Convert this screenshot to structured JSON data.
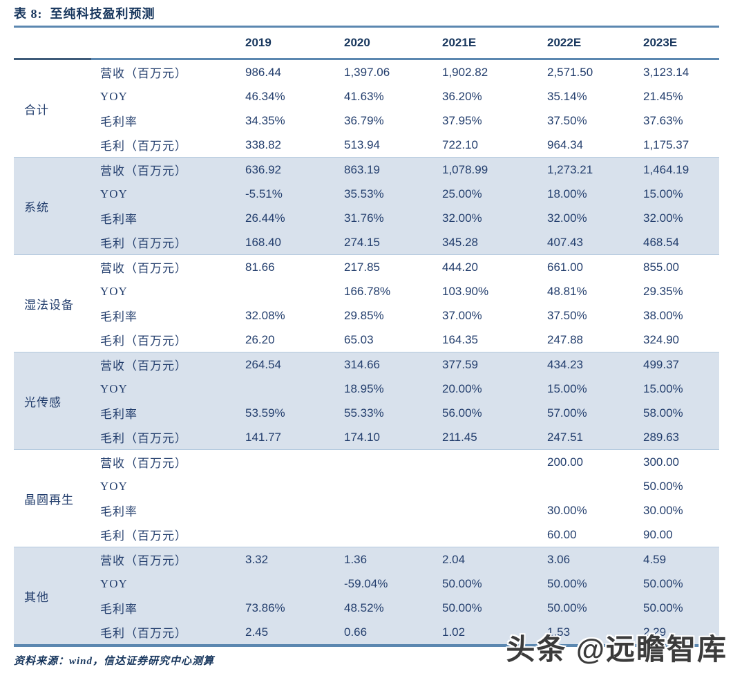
{
  "table": {
    "title": "表 8:  至纯科技盈利预测",
    "columns": [
      "2019",
      "2020",
      "2021E",
      "2022E",
      "2023E"
    ],
    "groups": [
      {
        "name": "合计",
        "rows": [
          {
            "metric": "营收（百万元）",
            "values": [
              "986.44",
              "1,397.06",
              "1,902.82",
              "2,571.50",
              "3,123.14"
            ]
          },
          {
            "metric": "YOY",
            "values": [
              "46.34%",
              "41.63%",
              "36.20%",
              "35.14%",
              "21.45%"
            ]
          },
          {
            "metric": "毛利率",
            "values": [
              "34.35%",
              "36.79%",
              "37.95%",
              "37.50%",
              "37.63%"
            ]
          },
          {
            "metric": "毛利（百万元）",
            "values": [
              "338.82",
              "513.94",
              "722.10",
              "964.34",
              "1,175.37"
            ]
          }
        ]
      },
      {
        "name": "系统",
        "rows": [
          {
            "metric": "营收（百万元）",
            "values": [
              "636.92",
              "863.19",
              "1,078.99",
              "1,273.21",
              "1,464.19"
            ]
          },
          {
            "metric": "YOY",
            "values": [
              "-5.51%",
              "35.53%",
              "25.00%",
              "18.00%",
              "15.00%"
            ]
          },
          {
            "metric": "毛利率",
            "values": [
              "26.44%",
              "31.76%",
              "32.00%",
              "32.00%",
              "32.00%"
            ]
          },
          {
            "metric": "毛利（百万元）",
            "values": [
              "168.40",
              "274.15",
              "345.28",
              "407.43",
              "468.54"
            ]
          }
        ]
      },
      {
        "name": "湿法设备",
        "rows": [
          {
            "metric": "营收（百万元）",
            "values": [
              "81.66",
              "217.85",
              "444.20",
              "661.00",
              "855.00"
            ]
          },
          {
            "metric": "YOY",
            "values": [
              "",
              "166.78%",
              "103.90%",
              "48.81%",
              "29.35%"
            ]
          },
          {
            "metric": "毛利率",
            "values": [
              "32.08%",
              "29.85%",
              "37.00%",
              "37.50%",
              "38.00%"
            ]
          },
          {
            "metric": "毛利（百万元）",
            "values": [
              "26.20",
              "65.03",
              "164.35",
              "247.88",
              "324.90"
            ]
          }
        ]
      },
      {
        "name": "光传感",
        "rows": [
          {
            "metric": "营收（百万元）",
            "values": [
              "264.54",
              "314.66",
              "377.59",
              "434.23",
              "499.37"
            ]
          },
          {
            "metric": "YOY",
            "values": [
              "",
              "18.95%",
              "20.00%",
              "15.00%",
              "15.00%"
            ]
          },
          {
            "metric": "毛利率",
            "values": [
              "53.59%",
              "55.33%",
              "56.00%",
              "57.00%",
              "58.00%"
            ]
          },
          {
            "metric": "毛利（百万元）",
            "values": [
              "141.77",
              "174.10",
              "211.45",
              "247.51",
              "289.63"
            ]
          }
        ]
      },
      {
        "name": "晶圆再生",
        "rows": [
          {
            "metric": "营收（百万元）",
            "values": [
              "",
              "",
              "",
              "200.00",
              "300.00"
            ]
          },
          {
            "metric": "YOY",
            "values": [
              "",
              "",
              "",
              "",
              "50.00%"
            ]
          },
          {
            "metric": "毛利率",
            "values": [
              "",
              "",
              "",
              "30.00%",
              "30.00%"
            ]
          },
          {
            "metric": "毛利（百万元）",
            "values": [
              "",
              "",
              "",
              "60.00",
              "90.00"
            ]
          }
        ]
      },
      {
        "name": "其他",
        "rows": [
          {
            "metric": "营收（百万元）",
            "values": [
              "3.32",
              "1.36",
              "2.04",
              "3.06",
              "4.59"
            ]
          },
          {
            "metric": "YOY",
            "values": [
              "",
              "-59.04%",
              "50.00%",
              "50.00%",
              "50.00%"
            ]
          },
          {
            "metric": "毛利率",
            "values": [
              "73.86%",
              "48.52%",
              "50.00%",
              "50.00%",
              "50.00%"
            ]
          },
          {
            "metric": "毛利（百万元）",
            "values": [
              "2.45",
              "0.66",
              "1.02",
              "1.53",
              "2.29"
            ]
          }
        ]
      }
    ]
  },
  "footer": {
    "source": "资料来源：wind，信达证券研究中心测算"
  },
  "watermark": {
    "text": "头条 @远瞻智库"
  },
  "colors": {
    "accent_line": "#5b87b0",
    "accent_line_dark": "#3d5a78",
    "band": "#d8e1ec",
    "value_text": "#233e6d",
    "title_text": "#17365d"
  }
}
